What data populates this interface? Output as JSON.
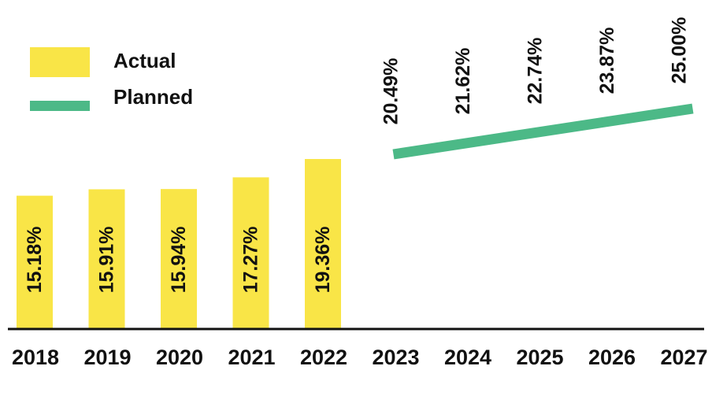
{
  "chart_data": {
    "type": "bar",
    "categories": [
      "2018",
      "2019",
      "2020",
      "2021",
      "2022",
      "2023",
      "2024",
      "2025",
      "2026",
      "2027"
    ],
    "series": [
      {
        "name": "Actual",
        "type": "bar",
        "color": "#F9E547",
        "values": [
          15.18,
          15.91,
          15.94,
          17.27,
          19.36,
          null,
          null,
          null,
          null,
          null
        ],
        "labels": [
          "15.18%",
          "15.91%",
          "15.94%",
          "17.27%",
          "19.36%",
          null,
          null,
          null,
          null,
          null
        ]
      },
      {
        "name": "Planned",
        "type": "line",
        "color": "#4CB987",
        "values": [
          null,
          null,
          null,
          null,
          null,
          20.49,
          21.62,
          22.74,
          23.87,
          25.0
        ],
        "labels": [
          null,
          null,
          null,
          null,
          null,
          "20.49%",
          "21.62%",
          "22.74%",
          "23.87%",
          "25.00%"
        ]
      }
    ],
    "title": "",
    "xlabel": "",
    "ylabel": "",
    "ylim": [
      0,
      25
    ],
    "grid": false,
    "legend": "top-left"
  }
}
